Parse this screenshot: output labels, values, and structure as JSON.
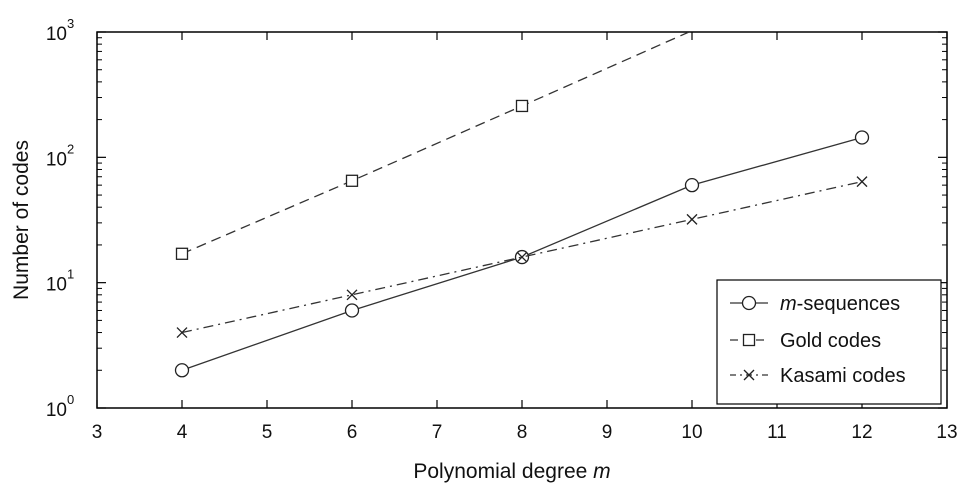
{
  "chart_data": {
    "type": "line",
    "xlabel": "Polynomial degree m",
    "xlabel_parts": [
      "Polynomial degree ",
      "m"
    ],
    "ylabel": "Number of codes",
    "xlim": [
      3,
      13
    ],
    "ylim": [
      1,
      1000
    ],
    "yscale": "log",
    "xticks": [
      3,
      4,
      5,
      6,
      7,
      8,
      9,
      10,
      11,
      12,
      13
    ],
    "xtick_labels": [
      "3",
      "4",
      "5",
      "6",
      "7",
      "8",
      "9",
      "10",
      "11",
      "12",
      "13"
    ],
    "yticks": [
      1,
      10,
      100,
      1000
    ],
    "ytick_labels": [
      {
        "base": "10",
        "exp": "0"
      },
      {
        "base": "10",
        "exp": "1"
      },
      {
        "base": "10",
        "exp": "2"
      },
      {
        "base": "10",
        "exp": "3"
      }
    ],
    "grid": false,
    "legend_position": "bottom-right",
    "series": [
      {
        "name": "m-sequences",
        "name_parts": [
          "m",
          "-sequences"
        ],
        "line": "solid",
        "marker": "circle",
        "x": [
          4,
          6,
          8,
          10,
          12
        ],
        "y": [
          2,
          6,
          16,
          60,
          144
        ]
      },
      {
        "name": "Gold codes",
        "name_parts": [
          "",
          "Gold codes"
        ],
        "line": "dashed",
        "marker": "square",
        "x": [
          4,
          6,
          8,
          10
        ],
        "y": [
          17,
          65,
          257,
          1025
        ]
      },
      {
        "name": "Kasami codes",
        "name_parts": [
          "",
          "Kasami codes"
        ],
        "line": "dashdot",
        "marker": "x",
        "x": [
          4,
          6,
          8,
          10,
          12
        ],
        "y": [
          4,
          8,
          16,
          32,
          64
        ]
      }
    ]
  }
}
